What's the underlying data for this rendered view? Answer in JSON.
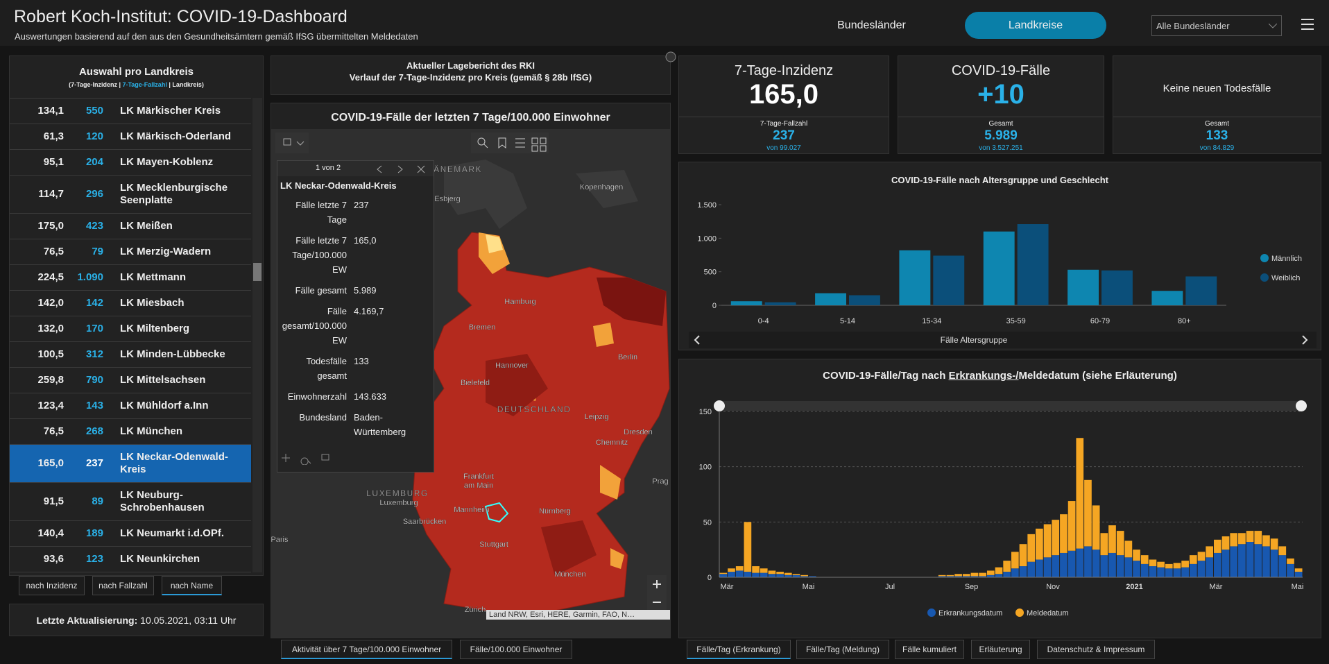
{
  "header": {
    "title": "Robert Koch-Institut: COVID-19-Dashboard",
    "subtitle": "Auswertungen basierend auf den aus den Gesundheitsämtern gemäß IfSG übermittelten Meldedaten",
    "nav": [
      "Bundesländer",
      "Landkreise"
    ],
    "nav_selected": 1,
    "dropdown": "Alle Bundesländer"
  },
  "list": {
    "title": "Auswahl pro Landkreis",
    "legend": [
      "(7-Tage-Inzidenz | ",
      "7-Tage-Fallzahl",
      " | Landkreis)"
    ],
    "selected": 13,
    "rows": [
      [
        "134,1",
        "550",
        "LK Märkischer Kreis"
      ],
      [
        "61,3",
        "120",
        "LK Märkisch-Oderland"
      ],
      [
        "95,1",
        "204",
        "LK Mayen-Koblenz"
      ],
      [
        "114,7",
        "296",
        "LK Mecklenburgische Seenplatte"
      ],
      [
        "175,0",
        "423",
        "LK Meißen"
      ],
      [
        "76,5",
        "79",
        "LK Merzig-Wadern"
      ],
      [
        "224,5",
        "1.090",
        "LK Mettmann"
      ],
      [
        "142,0",
        "142",
        "LK Miesbach"
      ],
      [
        "132,0",
        "170",
        "LK Miltenberg"
      ],
      [
        "100,5",
        "312",
        "LK Minden-Lübbecke"
      ],
      [
        "259,8",
        "790",
        "LK Mittelsachsen"
      ],
      [
        "123,4",
        "143",
        "LK Mühldorf a.Inn"
      ],
      [
        "76,5",
        "268",
        "LK München"
      ],
      [
        "165,0",
        "237",
        "LK Neckar-Odenwald-Kreis"
      ],
      [
        "91,5",
        "89",
        "LK Neuburg-Schrobenhausen"
      ],
      [
        "140,4",
        "189",
        "LK Neumarkt i.d.OPf."
      ],
      [
        "93,6",
        "123",
        "LK Neunkirchen"
      ]
    ],
    "tabs": [
      "nach Inzidenz",
      "nach Fallzahl",
      "nach Name"
    ],
    "tab_selected": 2
  },
  "update": {
    "label": "Letzte Aktualisierung:",
    "value": "10.05.2021, 03:11 Uhr"
  },
  "map": {
    "header": [
      "Aktueller Lagebericht des RKI",
      "Verlauf der 7-Tage-Inzidenz pro Kreis (gemäß § 28b IfSG)"
    ],
    "title": "COVID-19-Fälle der letzten 7 Tage/100.000 Einwohner",
    "popup": {
      "pager": "1 von 2",
      "title": "LK Neckar-Odenwald-Kreis",
      "fields": [
        [
          "Fälle letzte 7 Tage",
          "237"
        ],
        [
          "Fälle letzte 7 Tage/100.000 EW",
          "165,0"
        ],
        [
          "Fälle gesamt",
          "5.989"
        ],
        [
          "Fälle gesamt/100.000 EW",
          "4.169,7"
        ],
        [
          "Todesfälle gesamt",
          "133"
        ],
        [
          "Einwohnerzahl",
          "143.633"
        ],
        [
          "Bundesland",
          "Baden-Württemberg"
        ]
      ]
    },
    "labels": [
      "DÄNEMARK",
      "Esbjerg",
      "Kopenhagen",
      "Hamburg",
      "Bremen",
      "Hannover",
      "Berlin",
      "Bielefeld",
      "DEUTSCHLAND",
      "Leipzig",
      "Dresden",
      "Chemnitz",
      "Prag",
      "Frankfurt",
      "am Main",
      "LUXEMBURG",
      "Luxemburg",
      "Paris",
      "Mannheim",
      "Nürnberg",
      "Saarbrücken",
      "Stuttgart",
      "München",
      "Zürich"
    ],
    "attribution": "Land NRW, Esri, HERE, Garmin, FAO, N…",
    "tabs": [
      "Aktivität über 7 Tage/100.000 Einwohner",
      "Fälle/100.000 Einwohner"
    ],
    "tab_selected": 0
  },
  "kpis": [
    {
      "title": "7-Tage-Inzidenz",
      "value": "165,0",
      "sub_label": "7-Tage-Fallzahl",
      "sub_value": "237",
      "sub_total": "von 99.027"
    },
    {
      "title": "COVID-19-Fälle",
      "value": "+10",
      "sub_label": "Gesamt",
      "sub_value": "5.989",
      "sub_total": "von 3.527.251"
    },
    {
      "title": "Keine neuen Todesfälle",
      "sub_label": "Gesamt",
      "sub_value": "133",
      "sub_total": "von 84.829"
    }
  ],
  "chart_data": [
    {
      "type": "bar",
      "title": "COVID-19-Fälle nach Altersgruppe und Geschlecht",
      "x_label": "Fälle Altersgruppe",
      "categories": [
        "0-4",
        "5-14",
        "15-34",
        "35-59",
        "60-79",
        "80+"
      ],
      "series": [
        {
          "name": "Männlich",
          "color": "#0e86b0",
          "values": [
            60,
            180,
            820,
            1100,
            530,
            215
          ]
        },
        {
          "name": "Weiblich",
          "color": "#0b4f7a",
          "values": [
            45,
            150,
            740,
            1210,
            520,
            430
          ]
        }
      ],
      "ylim": [
        0,
        1500
      ],
      "yticks": [
        0,
        500,
        {
          "value": 1000,
          "label": "1.000"
        },
        {
          "value": 1500,
          "label": "1.500"
        }
      ],
      "grid": false,
      "legend": "right"
    },
    {
      "type": "stacked_bar",
      "title_parts": [
        "COVID-19-Fälle/Tag nach ",
        "Erkrankungs-/",
        "Meldedatum (siehe Erläuterung)"
      ],
      "x_labels": [
        "Mär",
        "Mai",
        "Jul",
        "Sep",
        "Nov",
        "2021",
        "Mär",
        "Mai"
      ],
      "series": [
        {
          "name": "Erkrankungsdatum",
          "color": "#1858b0",
          "values": [
            3,
            5,
            6,
            5,
            4,
            4,
            3,
            3,
            2,
            2,
            1,
            1,
            0,
            0,
            0,
            0,
            0,
            0,
            0,
            0,
            0,
            0,
            0,
            0,
            0,
            0,
            0,
            1,
            1,
            1,
            1,
            1,
            1,
            2,
            3,
            5,
            8,
            10,
            14,
            16,
            18,
            20,
            22,
            24,
            26,
            28,
            25,
            20,
            22,
            20,
            18,
            15,
            12,
            10,
            9,
            8,
            8,
            9,
            12,
            15,
            18,
            22,
            25,
            28,
            30,
            32,
            30,
            28,
            25,
            20,
            12,
            5
          ]
        },
        {
          "name": "Meldedatum",
          "color": "#f5a623",
          "values": [
            1,
            3,
            4,
            45,
            6,
            4,
            3,
            2,
            2,
            1,
            1,
            0,
            0,
            0,
            0,
            0,
            0,
            0,
            0,
            0,
            0,
            0,
            0,
            0,
            0,
            0,
            0,
            1,
            1,
            2,
            2,
            3,
            3,
            4,
            6,
            10,
            15,
            20,
            25,
            28,
            30,
            32,
            35,
            45,
            100,
            60,
            40,
            20,
            25,
            22,
            15,
            10,
            8,
            6,
            5,
            4,
            5,
            6,
            8,
            8,
            10,
            12,
            12,
            12,
            10,
            10,
            12,
            10,
            10,
            8,
            5,
            3
          ]
        }
      ],
      "ylim": [
        0,
        150
      ],
      "yticks": [
        0,
        50,
        100,
        150
      ],
      "grid": true,
      "legend": "bottom"
    }
  ],
  "tabs": [
    "Fälle/Tag (Erkrankung)",
    "Fälle/Tag (Meldung)",
    "Fälle kumuliert",
    "Erläuterung",
    "Datenschutz & Impressum"
  ],
  "tab_selected": 0
}
